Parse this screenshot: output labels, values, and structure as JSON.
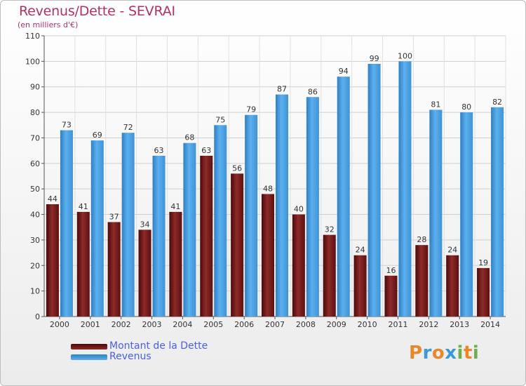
{
  "header": {
    "title": "Revenus/Dette - SEVRAI",
    "subtitle": "(en milliers d'€)"
  },
  "chart_data": {
    "type": "bar",
    "title": "Revenus/Dette - SEVRAI",
    "subtitle": "(en milliers d'€)",
    "xlabel": "",
    "ylabel": "",
    "ylim": [
      0,
      110
    ],
    "yticks": [
      0,
      10,
      20,
      30,
      40,
      50,
      60,
      70,
      80,
      90,
      100,
      110
    ],
    "grid": true,
    "legend_position": "bottom-left",
    "categories": [
      "2000",
      "2001",
      "2002",
      "2003",
      "2004",
      "2005",
      "2006",
      "2007",
      "2008",
      "2009",
      "2010",
      "2011",
      "2012",
      "2013",
      "2014"
    ],
    "series": [
      {
        "name": "Montant de la Dette",
        "color": "#7a1a1a",
        "values": [
          44,
          41,
          37,
          34,
          41,
          63,
          56,
          48,
          40,
          32,
          24,
          16,
          28,
          24,
          19
        ]
      },
      {
        "name": "Revenus",
        "color": "#4ea5e6",
        "values": [
          73,
          69,
          72,
          63,
          68,
          75,
          79,
          87,
          86,
          94,
          99,
          100,
          81,
          80,
          82
        ]
      }
    ]
  },
  "legend": {
    "items": [
      {
        "label": "Montant de la Dette",
        "color": "#7a1a1a"
      },
      {
        "label": "Revenus",
        "color": "#4ea5e6"
      }
    ]
  },
  "logo": {
    "text": "Proxiti",
    "colors": [
      "#e8882a",
      "#3a9ad9",
      "#e8882a",
      "#3a9ad9",
      "#6ab04c",
      "#e8882a",
      "#6ab04c"
    ]
  }
}
